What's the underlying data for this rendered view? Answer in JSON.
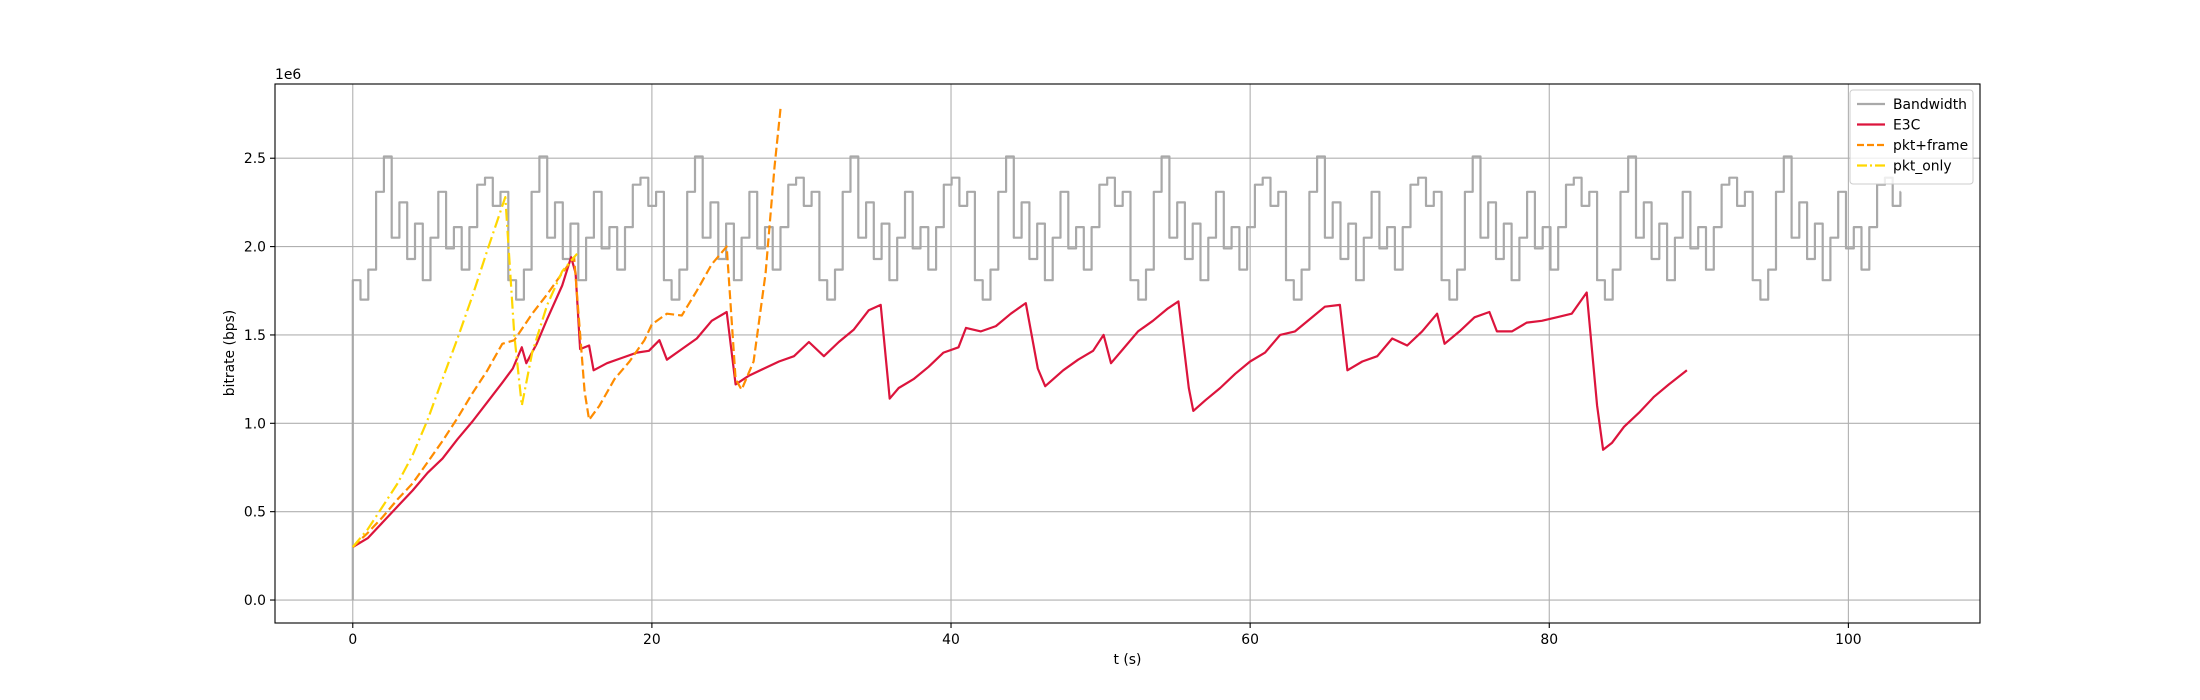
{
  "chart_data": {
    "type": "line",
    "title": "",
    "xlabel": "t (s)",
    "ylabel": "bitrate (bps)",
    "y_scale_label": "1e6",
    "xlim": [
      -5.2,
      108.8
    ],
    "ylim": [
      -0.13,
      2.92
    ],
    "x_ticks": [
      0,
      20,
      40,
      60,
      80,
      100
    ],
    "y_ticks": [
      0.0,
      0.5,
      1.0,
      1.5,
      2.0,
      2.5
    ],
    "x_tick_labels": [
      "0",
      "20",
      "40",
      "60",
      "80",
      "100"
    ],
    "y_tick_labels": [
      "0.0",
      "0.5",
      "1.0",
      "1.5",
      "2.0",
      "2.5"
    ],
    "grid": true,
    "legend_position": "top-right",
    "series": [
      {
        "name": "Bandwidth",
        "color": "#a9a9a9",
        "style": "steps",
        "period": 10.4,
        "period_count": 10,
        "pattern_points": [
          [
            0,
            1.81
          ],
          [
            0.52,
            1.7
          ],
          [
            1.04,
            1.87
          ],
          [
            1.56,
            2.31
          ],
          [
            2.08,
            2.51
          ],
          [
            2.6,
            2.05
          ],
          [
            3.12,
            2.25
          ],
          [
            3.64,
            1.93
          ],
          [
            4.16,
            2.13
          ],
          [
            4.68,
            1.81
          ],
          [
            5.2,
            2.05
          ],
          [
            5.72,
            2.31
          ],
          [
            6.24,
            1.99
          ],
          [
            6.76,
            2.11
          ],
          [
            7.28,
            1.87
          ],
          [
            7.8,
            2.11
          ],
          [
            8.32,
            2.35
          ],
          [
            8.84,
            2.39
          ],
          [
            9.36,
            2.23
          ],
          [
            9.88,
            2.31
          ]
        ],
        "end_x": 103.5,
        "initial_point": [
          0,
          0.0
        ]
      },
      {
        "name": "E3C",
        "color": "#dc143c",
        "style": "solid",
        "points": [
          [
            0,
            0.3
          ],
          [
            1,
            0.35
          ],
          [
            2,
            0.44
          ],
          [
            3,
            0.53
          ],
          [
            4,
            0.62
          ],
          [
            5,
            0.72
          ],
          [
            6,
            0.8
          ],
          [
            7,
            0.91
          ],
          [
            8,
            1.01
          ],
          [
            9,
            1.12
          ],
          [
            10,
            1.23
          ],
          [
            10.7,
            1.31
          ],
          [
            11.3,
            1.43
          ],
          [
            11.6,
            1.34
          ],
          [
            12.3,
            1.45
          ],
          [
            13.0,
            1.59
          ],
          [
            14.0,
            1.78
          ],
          [
            14.6,
            1.94
          ],
          [
            14.9,
            1.85
          ],
          [
            15.2,
            1.42
          ],
          [
            15.8,
            1.44
          ],
          [
            16.1,
            1.3
          ],
          [
            17,
            1.34
          ],
          [
            18,
            1.37
          ],
          [
            19,
            1.4
          ],
          [
            19.8,
            1.41
          ],
          [
            20.5,
            1.47
          ],
          [
            21,
            1.36
          ],
          [
            22,
            1.42
          ],
          [
            23,
            1.48
          ],
          [
            24,
            1.58
          ],
          [
            25,
            1.63
          ],
          [
            25.6,
            1.22
          ],
          [
            26.5,
            1.27
          ],
          [
            27.5,
            1.31
          ],
          [
            28.5,
            1.35
          ],
          [
            29.5,
            1.38
          ],
          [
            30.5,
            1.46
          ],
          [
            31.5,
            1.38
          ],
          [
            32.5,
            1.46
          ],
          [
            33.5,
            1.53
          ],
          [
            34.5,
            1.64
          ],
          [
            35.3,
            1.67
          ],
          [
            35.9,
            1.14
          ],
          [
            36.5,
            1.2
          ],
          [
            37.5,
            1.25
          ],
          [
            38.5,
            1.32
          ],
          [
            39.5,
            1.4
          ],
          [
            40.5,
            1.43
          ],
          [
            41,
            1.54
          ],
          [
            42,
            1.52
          ],
          [
            43,
            1.55
          ],
          [
            44,
            1.62
          ],
          [
            45.0,
            1.68
          ],
          [
            45.8,
            1.31
          ],
          [
            46.3,
            1.21
          ],
          [
            47.5,
            1.3
          ],
          [
            48.5,
            1.36
          ],
          [
            49.5,
            1.41
          ],
          [
            50.2,
            1.5
          ],
          [
            50.7,
            1.34
          ],
          [
            51.5,
            1.42
          ],
          [
            52.5,
            1.52
          ],
          [
            53.5,
            1.58
          ],
          [
            54.5,
            1.65
          ],
          [
            55.2,
            1.69
          ],
          [
            55.9,
            1.2
          ],
          [
            56.2,
            1.07
          ],
          [
            57,
            1.13
          ],
          [
            58,
            1.2
          ],
          [
            59,
            1.28
          ],
          [
            60,
            1.35
          ],
          [
            61,
            1.4
          ],
          [
            62,
            1.5
          ],
          [
            63,
            1.52
          ],
          [
            64,
            1.59
          ],
          [
            65,
            1.66
          ],
          [
            66,
            1.67
          ],
          [
            66.5,
            1.3
          ],
          [
            67.5,
            1.35
          ],
          [
            68.5,
            1.38
          ],
          [
            69.5,
            1.48
          ],
          [
            70.5,
            1.44
          ],
          [
            71.5,
            1.52
          ],
          [
            72.5,
            1.62
          ],
          [
            73,
            1.45
          ],
          [
            74,
            1.52
          ],
          [
            75,
            1.6
          ],
          [
            76,
            1.63
          ],
          [
            76.5,
            1.52
          ],
          [
            77.5,
            1.52
          ],
          [
            78.5,
            1.57
          ],
          [
            79.5,
            1.58
          ],
          [
            80.5,
            1.6
          ],
          [
            81.5,
            1.62
          ],
          [
            82.5,
            1.74
          ],
          [
            83.2,
            1.1
          ],
          [
            83.6,
            0.85
          ],
          [
            84.2,
            0.89
          ],
          [
            85.0,
            0.98
          ],
          [
            86.0,
            1.06
          ],
          [
            87.0,
            1.15
          ],
          [
            88.0,
            1.22
          ],
          [
            89.2,
            1.3
          ]
        ]
      },
      {
        "name": "pkt+frame",
        "color": "#ff8c00",
        "style": "dashed",
        "points": [
          [
            0,
            0.3
          ],
          [
            1,
            0.38
          ],
          [
            2,
            0.47
          ],
          [
            3,
            0.57
          ],
          [
            4,
            0.66
          ],
          [
            5,
            0.78
          ],
          [
            6,
            0.9
          ],
          [
            7,
            1.03
          ],
          [
            8,
            1.17
          ],
          [
            9,
            1.3
          ],
          [
            10,
            1.45
          ],
          [
            10.8,
            1.47
          ],
          [
            12,
            1.62
          ],
          [
            13,
            1.73
          ],
          [
            14,
            1.85
          ],
          [
            14.8,
            1.94
          ],
          [
            15.5,
            1.18
          ],
          [
            15.8,
            1.02
          ],
          [
            16.5,
            1.1
          ],
          [
            17.5,
            1.25
          ],
          [
            18.5,
            1.35
          ],
          [
            19.5,
            1.47
          ],
          [
            20,
            1.56
          ],
          [
            21,
            1.62
          ],
          [
            22,
            1.61
          ],
          [
            23,
            1.75
          ],
          [
            24,
            1.9
          ],
          [
            25,
            2.0
          ],
          [
            25.6,
            1.25
          ],
          [
            26.0,
            1.19
          ],
          [
            26.8,
            1.35
          ],
          [
            27.6,
            1.85
          ],
          [
            28.2,
            2.45
          ],
          [
            28.6,
            2.78
          ]
        ]
      },
      {
        "name": "pkt_only",
        "color": "#ffd700",
        "style": "dashdot",
        "points": [
          [
            0,
            0.3
          ],
          [
            1,
            0.4
          ],
          [
            2,
            0.53
          ],
          [
            3,
            0.66
          ],
          [
            4,
            0.82
          ],
          [
            5,
            1.02
          ],
          [
            6,
            1.25
          ],
          [
            7,
            1.48
          ],
          [
            8,
            1.72
          ],
          [
            9,
            1.98
          ],
          [
            10.2,
            2.28
          ],
          [
            10.8,
            1.5
          ],
          [
            11.3,
            1.1
          ],
          [
            12,
            1.4
          ],
          [
            13,
            1.67
          ],
          [
            14,
            1.86
          ],
          [
            15.0,
            1.96
          ]
        ]
      }
    ]
  }
}
